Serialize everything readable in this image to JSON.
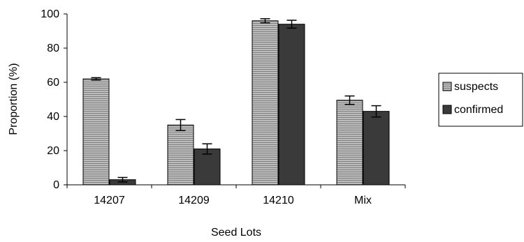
{
  "chart_data": {
    "type": "bar",
    "categories": [
      "14207",
      "14209",
      "14210",
      "Mix"
    ],
    "series": [
      {
        "name": "suspects",
        "values": [
          62,
          35,
          96,
          49.5
        ],
        "errors": [
          0.7,
          3.2,
          1.2,
          2.5
        ],
        "color": "#a6a6a6",
        "pattern": "horizontal-stripes"
      },
      {
        "name": "confirmed",
        "values": [
          3,
          21,
          94,
          43
        ],
        "errors": [
          1.3,
          3.0,
          2.3,
          3.3
        ],
        "color": "#3a3a3a",
        "pattern": "solid"
      }
    ],
    "xlabel": "Seed Lots",
    "ylabel": "Proportion (%)",
    "ylim": [
      0,
      100
    ],
    "yticks": [
      "0",
      "20",
      "40",
      "60",
      "80",
      "100"
    ],
    "grid": false,
    "legend_position": "right"
  }
}
